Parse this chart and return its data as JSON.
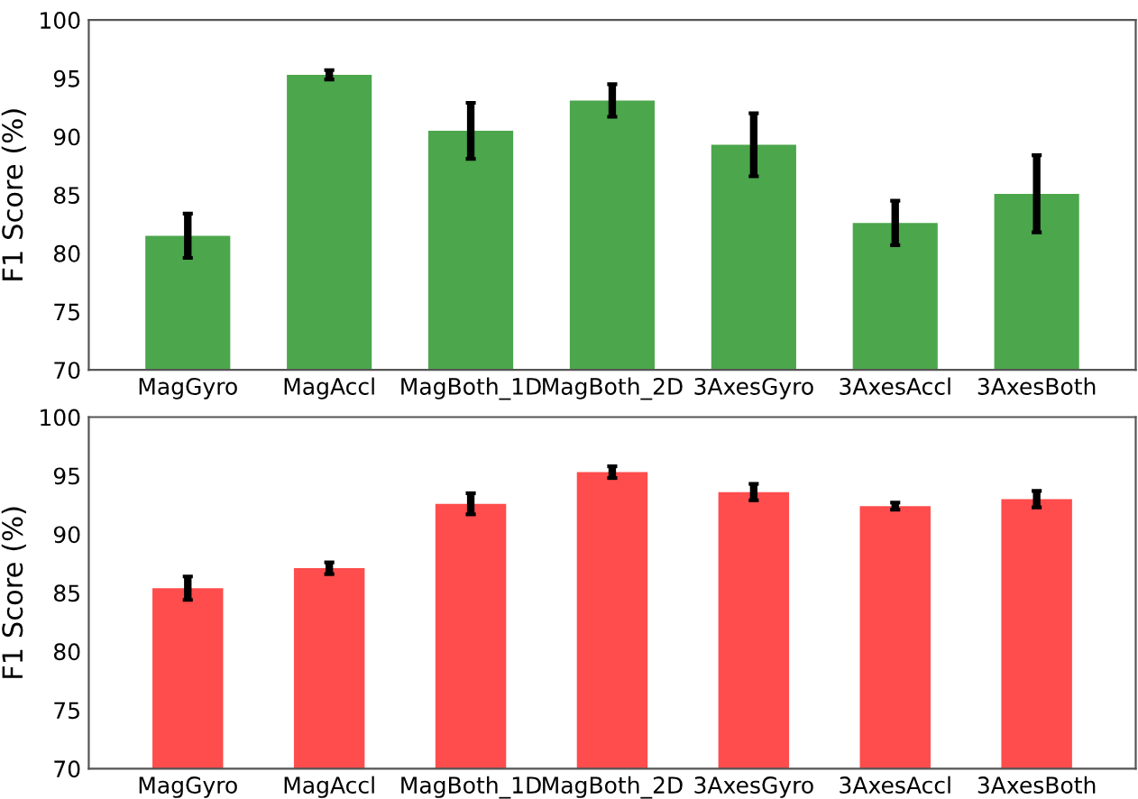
{
  "chart_data": [
    {
      "type": "bar",
      "ylabel": "F1 Score (%)",
      "categories": [
        "MagGyro",
        "MagAccl",
        "MagBoth_1D",
        "MagBoth_2D",
        "3AxesGyro",
        "3AxesAccl",
        "3AxesBoth"
      ],
      "series": [
        {
          "color": "#4ca64c",
          "values": [
            81.5,
            95.3,
            90.5,
            93.1,
            89.3,
            82.6,
            85.1
          ],
          "errors": [
            1.9,
            0.4,
            2.4,
            1.4,
            2.7,
            1.9,
            3.3
          ]
        }
      ],
      "ylim": [
        70,
        100
      ],
      "yticks": [
        70,
        75,
        80,
        85,
        90,
        95,
        100
      ],
      "grid": false
    },
    {
      "type": "bar",
      "ylabel": "F1 Score (%)",
      "categories": [
        "MagGyro",
        "MagAccl",
        "MagBoth_1D",
        "MagBoth_2D",
        "3AxesGyro",
        "3AxesAccl",
        "3AxesBoth"
      ],
      "series": [
        {
          "color": "#ff4c4c",
          "values": [
            85.4,
            87.1,
            92.6,
            95.3,
            93.6,
            92.4,
            93.0
          ],
          "errors": [
            1.0,
            0.5,
            0.9,
            0.5,
            0.7,
            0.3,
            0.7
          ]
        }
      ],
      "ylim": [
        70,
        100
      ],
      "yticks": [
        70,
        75,
        80,
        85,
        90,
        95,
        100
      ],
      "grid": false
    }
  ]
}
